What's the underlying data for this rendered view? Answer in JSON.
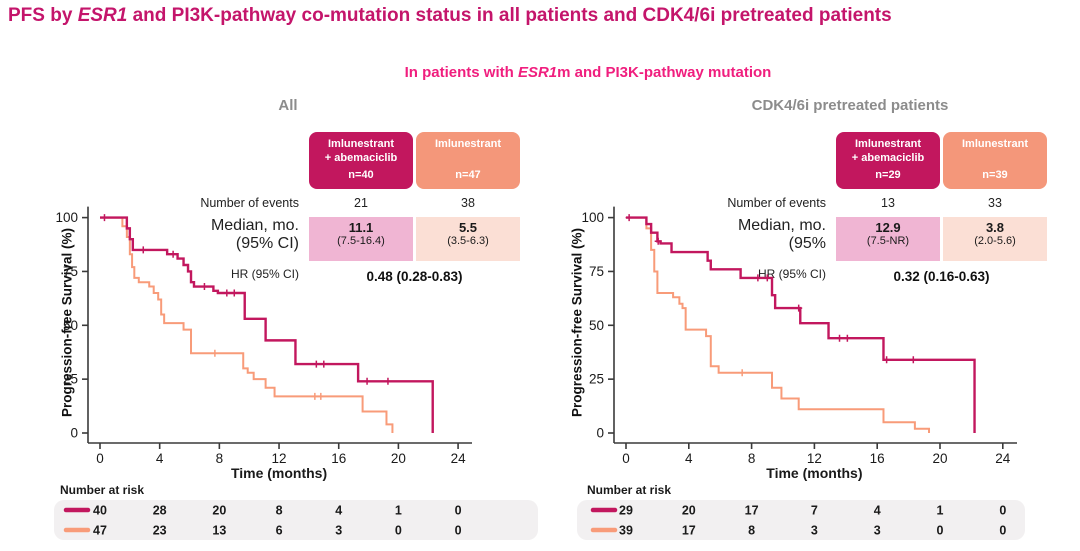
{
  "title": {
    "pre": "PFS by ",
    "italic": "ESR1",
    "post": " and PI3K-pathway co-mutation status in all patients and CDK4/6i pretreated patients"
  },
  "subtitle": {
    "pre": "In patients with ",
    "italic": "ESR1",
    "post": "m and PI3K-pathway mutation"
  },
  "colors": {
    "title": "#C4156B",
    "subtitle": "#F01E7E",
    "panel_header_grey": "#8C8C8C",
    "magenta": "#C2175E",
    "salmon": "#F89B79",
    "median_cell_pink": "#F0B5D3",
    "median_cell_peach": "#FBDFD5",
    "risk_bg": "#F2F0F1",
    "axis": "#3A3A3A"
  },
  "chart_data": [
    {
      "type": "line",
      "subtype": "kaplan-meier-step",
      "panel_title": "All",
      "xlabel": "Time (months)",
      "ylabel": "Progression-free Survival (%)",
      "xlim": [
        0,
        26
      ],
      "ylim": [
        0,
        100
      ],
      "xticks": [
        0,
        4,
        8,
        12,
        16,
        20,
        24
      ],
      "yticks": [
        0,
        25,
        50,
        75,
        100
      ],
      "grid": false,
      "series": [
        {
          "name": "Imlunestrant + abemaciclib",
          "n": 40,
          "color": "#C2175E",
          "width": 2.4,
          "steps": [
            [
              0,
              100
            ],
            [
              1.8,
              95
            ],
            [
              2.0,
              90
            ],
            [
              2.2,
              85
            ],
            [
              4.5,
              83
            ],
            [
              5.2,
              81
            ],
            [
              5.6,
              78
            ],
            [
              5.9,
              75
            ],
            [
              6.1,
              70
            ],
            [
              6.3,
              68
            ],
            [
              7.6,
              66
            ],
            [
              7.9,
              65
            ],
            [
              9.7,
              53
            ],
            [
              11.1,
              43
            ],
            [
              13.1,
              32
            ],
            [
              17.3,
              24
            ],
            [
              22.3,
              0
            ]
          ],
          "censors": [
            [
              0.3,
              100
            ],
            [
              2.9,
              85
            ],
            [
              4.9,
              83
            ],
            [
              7.0,
              68
            ],
            [
              8.5,
              65
            ],
            [
              9.0,
              65
            ],
            [
              14.5,
              32
            ],
            [
              15.0,
              32
            ],
            [
              17.9,
              24
            ],
            [
              19.3,
              24
            ]
          ]
        },
        {
          "name": "Imlunestrant",
          "n": 47,
          "color": "#F89B79",
          "width": 2.0,
          "steps": [
            [
              0,
              100
            ],
            [
              1.5,
              96
            ],
            [
              1.8,
              91
            ],
            [
              2.0,
              83
            ],
            [
              2.15,
              77
            ],
            [
              2.3,
              72
            ],
            [
              2.6,
              70
            ],
            [
              3.3,
              68
            ],
            [
              3.6,
              65
            ],
            [
              3.9,
              62
            ],
            [
              4.1,
              55
            ],
            [
              4.3,
              51
            ],
            [
              5.6,
              48
            ],
            [
              6.1,
              37
            ],
            [
              9.6,
              30
            ],
            [
              9.9,
              28
            ],
            [
              10.3,
              25
            ],
            [
              11.1,
              21
            ],
            [
              11.7,
              17
            ],
            [
              17.6,
              10
            ],
            [
              19.2,
              4
            ],
            [
              19.6,
              0
            ]
          ],
          "censors": [
            [
              7.7,
              37
            ],
            [
              14.4,
              17
            ],
            [
              14.8,
              17
            ]
          ]
        }
      ],
      "stats": {
        "columns": [
          {
            "title_line1": "Imlunestrant",
            "title_line2": "+ abemaciclib",
            "n_label": "n=40"
          },
          {
            "title_line1": "Imlunestrant",
            "title_line2": "",
            "n_label": "n=47"
          }
        ],
        "events_label": "Number of events",
        "events": [
          "21",
          "38"
        ],
        "median_label_line1": "Median, mo.",
        "median_label_line2": "(95% CI)",
        "median_values": [
          "11.1",
          "5.5"
        ],
        "median_cis": [
          "(7.5-16.4)",
          "(3.5-6.3)"
        ],
        "hr_label": "HR (95% CI)",
        "hr_value": "0.48 (0.28-0.83)"
      },
      "number_at_risk": {
        "header": "Number at risk",
        "times": [
          0,
          4,
          8,
          12,
          16,
          20,
          24
        ],
        "rows": [
          {
            "color": "#C2175E",
            "values": [
              "40",
              "28",
              "20",
              "8",
              "4",
              "1",
              "0"
            ]
          },
          {
            "color": "#F89B79",
            "values": [
              "47",
              "23",
              "13",
              "6",
              "3",
              "0",
              "0"
            ]
          }
        ]
      }
    },
    {
      "type": "line",
      "subtype": "kaplan-meier-step",
      "panel_title": "CDK4/6i pretreated patients",
      "xlabel": "Time (months)",
      "ylabel": "Progression-free Survival (%)",
      "xlim": [
        0,
        26
      ],
      "ylim": [
        0,
        100
      ],
      "xticks": [
        0,
        4,
        8,
        12,
        16,
        20,
        24
      ],
      "yticks": [
        0,
        25,
        50,
        75,
        100
      ],
      "grid": false,
      "series": [
        {
          "name": "Imlunestrant + abemaciclib",
          "n": 29,
          "color": "#C2175E",
          "width": 2.4,
          "steps": [
            [
              0,
              100
            ],
            [
              1.3,
              97
            ],
            [
              1.6,
              93
            ],
            [
              2.0,
              89
            ],
            [
              2.2,
              88
            ],
            [
              2.9,
              84
            ],
            [
              5.2,
              80
            ],
            [
              5.4,
              76
            ],
            [
              7.3,
              72
            ],
            [
              9.3,
              64
            ],
            [
              9.5,
              58
            ],
            [
              11.1,
              51
            ],
            [
              12.9,
              44
            ],
            [
              16.4,
              34
            ],
            [
              22.2,
              0
            ]
          ],
          "censors": [
            [
              0.2,
              100
            ],
            [
              2.05,
              89
            ],
            [
              8.4,
              72
            ],
            [
              9.0,
              72
            ],
            [
              11.0,
              58
            ],
            [
              13.6,
              44
            ],
            [
              14.1,
              44
            ],
            [
              16.6,
              34
            ],
            [
              18.3,
              34
            ]
          ]
        },
        {
          "name": "Imlunestrant",
          "n": 39,
          "color": "#F89B79",
          "width": 2.0,
          "steps": [
            [
              0,
              100
            ],
            [
              1.3,
              95
            ],
            [
              1.6,
              85
            ],
            [
              1.8,
              75
            ],
            [
              2.0,
              65
            ],
            [
              3.0,
              63
            ],
            [
              3.4,
              60
            ],
            [
              3.6,
              58
            ],
            [
              3.8,
              48
            ],
            [
              5.1,
              45
            ],
            [
              5.4,
              31
            ],
            [
              5.9,
              28
            ],
            [
              9.3,
              21
            ],
            [
              9.9,
              16
            ],
            [
              11.0,
              11
            ],
            [
              16.4,
              5
            ],
            [
              18.4,
              2
            ],
            [
              19.3,
              0
            ]
          ],
          "censors": [
            [
              7.4,
              28
            ]
          ]
        }
      ],
      "stats": {
        "columns": [
          {
            "title_line1": "Imlunestrant",
            "title_line2": "+ abemaciclib",
            "n_label": "n=29"
          },
          {
            "title_line1": "Imlunestrant",
            "title_line2": "",
            "n_label": "n=39"
          }
        ],
        "events_label": "Number of events",
        "events": [
          "13",
          "33"
        ],
        "median_label_line1": "Median, mo.",
        "median_label_line2": "(95%",
        "median_values": [
          "12.9",
          "3.8"
        ],
        "median_cis": [
          "(7.5-NR)",
          "(2.0-5.6)"
        ],
        "hr_label": "HR (95% CI)",
        "hr_value": "0.32 (0.16-0.63)"
      },
      "number_at_risk": {
        "header": "Number at risk",
        "times": [
          0,
          4,
          8,
          12,
          16,
          20,
          24
        ],
        "rows": [
          {
            "color": "#C2175E",
            "values": [
              "29",
              "20",
              "17",
              "7",
              "4",
              "1",
              "0"
            ]
          },
          {
            "color": "#F89B79",
            "values": [
              "39",
              "17",
              "8",
              "3",
              "3",
              "0",
              "0"
            ]
          }
        ]
      }
    }
  ]
}
